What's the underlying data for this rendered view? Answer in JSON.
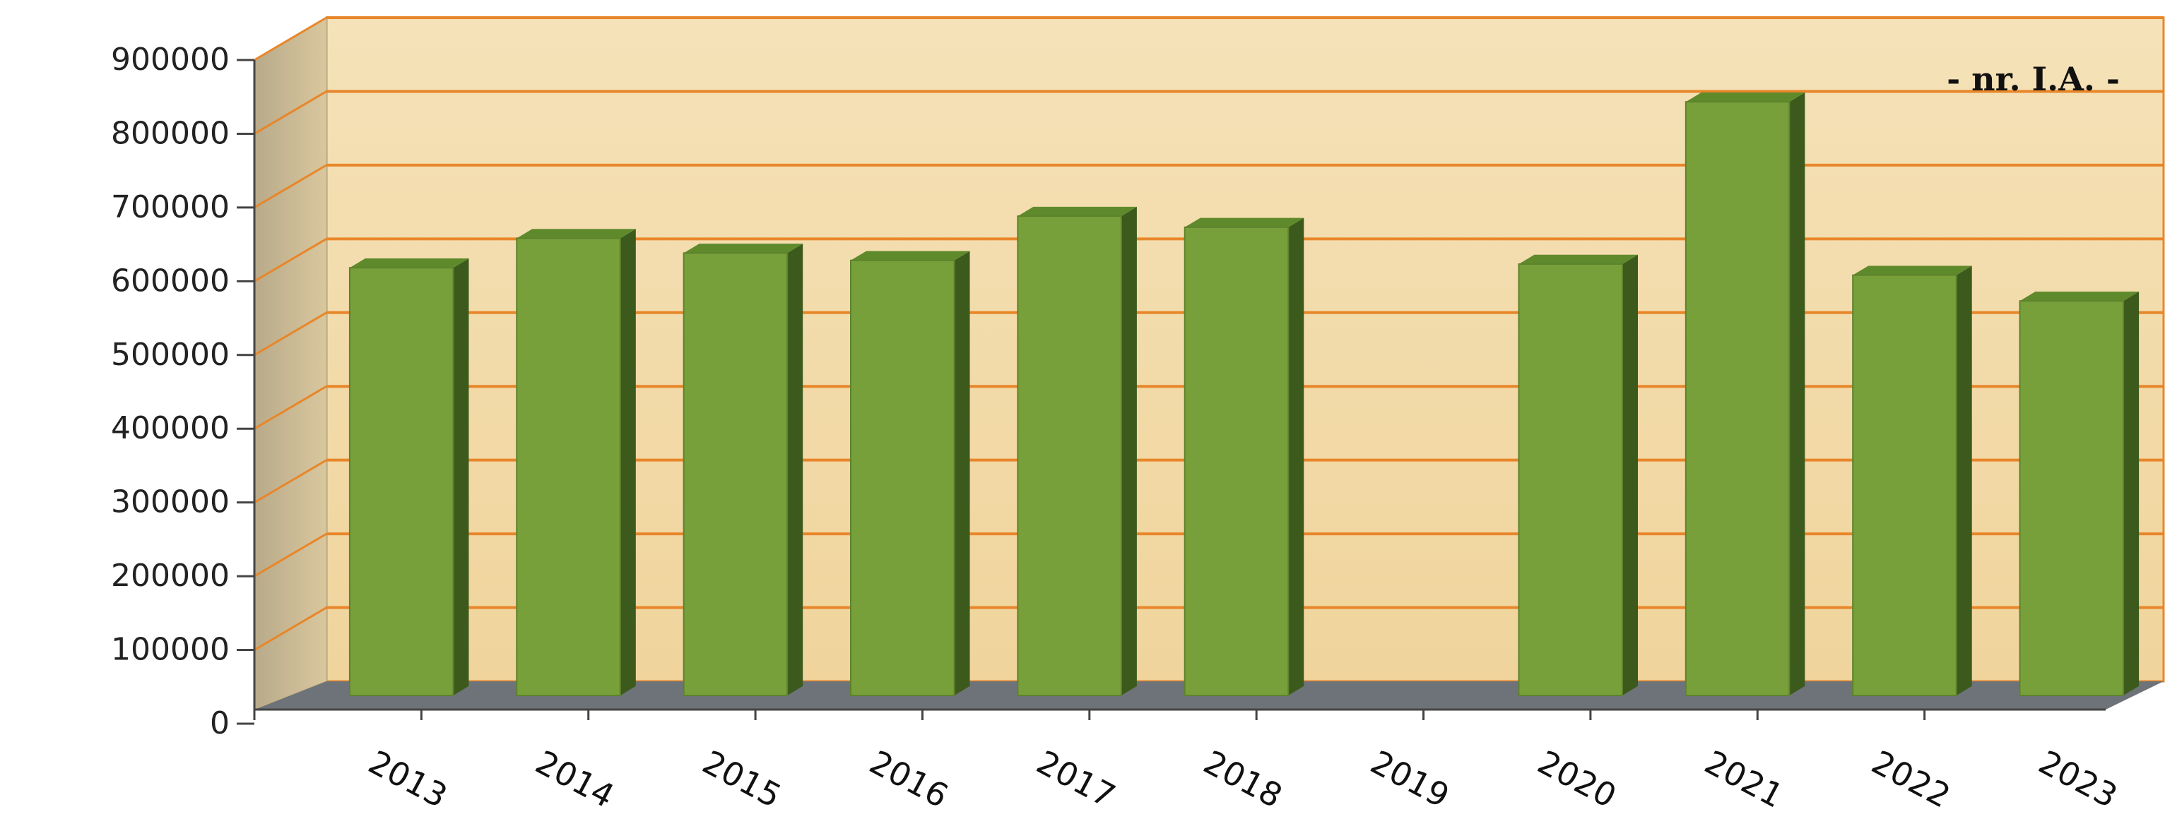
{
  "chart_data": {
    "type": "bar",
    "categories": [
      "2013",
      "2014",
      "2015",
      "2016",
      "2017",
      "2018",
      "2019",
      "2020",
      "2021",
      "2022",
      "2023"
    ],
    "values": [
      580000,
      620000,
      600000,
      590000,
      650000,
      635000,
      null,
      585000,
      805000,
      570000,
      535000
    ],
    "unit_label": "- nr. I.A. -",
    "ylim": [
      0,
      900000
    ],
    "yticks": [
      "0",
      "100000",
      "200000",
      "300000",
      "400000",
      "500000",
      "600000",
      "700000",
      "800000",
      "900000"
    ],
    "grid": true,
    "colors": {
      "bar_front": "#77a03a",
      "bar_side": "#3d5a1d",
      "bar_top": "#5f8a2c",
      "gridline": "#e8862a",
      "wall": "#f3ddae",
      "floor": "#6d7378"
    }
  }
}
